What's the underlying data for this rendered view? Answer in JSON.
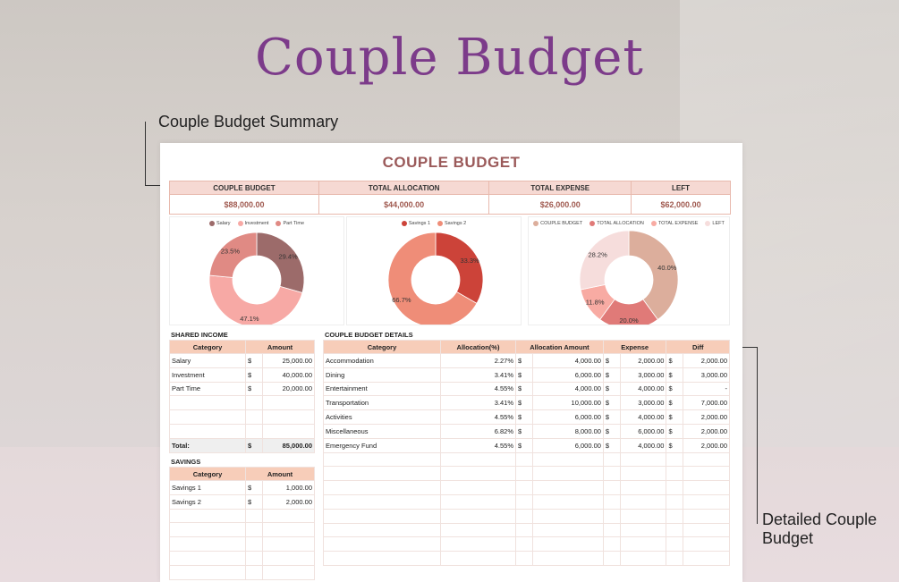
{
  "page_title": "Couple Budget",
  "callouts": {
    "summary": "Couple Budget Summary",
    "detail_line1": "Detailed Couple",
    "detail_line2": "Budget"
  },
  "sheet": {
    "title": "COUPLE BUDGET",
    "summary_headers": [
      "COUPLE BUDGET",
      "TOTAL ALLOCATION",
      "TOTAL EXPENSE",
      "LEFT"
    ],
    "summary_values": [
      "$88,000.00",
      "$44,000.00",
      "$26,000.00",
      "$62,000.00"
    ]
  },
  "chart_data": [
    {
      "type": "pie",
      "donut": true,
      "categories": [
        "Salary",
        "Investment",
        "Part Time"
      ],
      "values": [
        29.4,
        47.1,
        23.5
      ],
      "labels": [
        "29.4%",
        "47.1%",
        "23.5%"
      ],
      "colors": [
        "#9c6b6a",
        "#f7a9a5",
        "#e08a84"
      ]
    },
    {
      "type": "pie",
      "donut": true,
      "categories": [
        "Savings 1",
        "Savings 2"
      ],
      "values": [
        33.3,
        66.7
      ],
      "labels": [
        "33.3%",
        "66.7%"
      ],
      "colors": [
        "#cc4339",
        "#ef8d78"
      ]
    },
    {
      "type": "pie",
      "donut": true,
      "categories": [
        "COUPLE BUDGET",
        "TOTAL ALLOCATION",
        "TOTAL EXPENSE",
        "LEFT"
      ],
      "values": [
        40.0,
        20.0,
        11.8,
        28.2
      ],
      "labels": [
        "40.0%",
        "20.0%",
        "11.8%",
        "28.2%"
      ],
      "colors": [
        "#dcae9c",
        "#e07a78",
        "#f8aba3",
        "#f6dddc"
      ]
    }
  ],
  "shared_income": {
    "label": "SHARED INCOME",
    "headers": [
      "Category",
      "Amount"
    ],
    "rows": [
      {
        "category": "Salary",
        "cur": "$",
        "amount": "25,000.00"
      },
      {
        "category": "Investment",
        "cur": "$",
        "amount": "40,000.00"
      },
      {
        "category": "Part Time",
        "cur": "$",
        "amount": "20,000.00"
      }
    ],
    "total_label": "Total:",
    "total_cur": "$",
    "total": "85,000.00"
  },
  "savings": {
    "label": "SAVINGS",
    "headers": [
      "Category",
      "Amount"
    ],
    "rows": [
      {
        "category": "Savings 1",
        "cur": "$",
        "amount": "1,000.00"
      },
      {
        "category": "Savings 2",
        "cur": "$",
        "amount": "2,000.00"
      }
    ]
  },
  "details": {
    "label": "COUPLE BUDGET DETAILS",
    "headers": [
      "Category",
      "Allocation(%)",
      "Allocation Amount",
      "Expense",
      "Diff"
    ],
    "rows": [
      {
        "category": "Accommodation",
        "pct": "2.27%",
        "alloc_cur": "$",
        "alloc": "4,000.00",
        "exp_cur": "$",
        "exp": "2,000.00",
        "diff_cur": "$",
        "diff": "2,000.00"
      },
      {
        "category": "Dining",
        "pct": "3.41%",
        "alloc_cur": "$",
        "alloc": "6,000.00",
        "exp_cur": "$",
        "exp": "3,000.00",
        "diff_cur": "$",
        "diff": "3,000.00"
      },
      {
        "category": "Entertainment",
        "pct": "4.55%",
        "alloc_cur": "$",
        "alloc": "4,000.00",
        "exp_cur": "$",
        "exp": "4,000.00",
        "diff_cur": "$",
        "diff": "-"
      },
      {
        "category": "Transportation",
        "pct": "3.41%",
        "alloc_cur": "$",
        "alloc": "10,000.00",
        "exp_cur": "$",
        "exp": "3,000.00",
        "diff_cur": "$",
        "diff": "7,000.00"
      },
      {
        "category": "Activities",
        "pct": "4.55%",
        "alloc_cur": "$",
        "alloc": "6,000.00",
        "exp_cur": "$",
        "exp": "4,000.00",
        "diff_cur": "$",
        "diff": "2,000.00"
      },
      {
        "category": "Miscellaneous",
        "pct": "6.82%",
        "alloc_cur": "$",
        "alloc": "8,000.00",
        "exp_cur": "$",
        "exp": "6,000.00",
        "diff_cur": "$",
        "diff": "2,000.00"
      },
      {
        "category": "Emergency Fund",
        "pct": "4.55%",
        "alloc_cur": "$",
        "alloc": "6,000.00",
        "exp_cur": "$",
        "exp": "4,000.00",
        "diff_cur": "$",
        "diff": "2,000.00"
      }
    ]
  }
}
